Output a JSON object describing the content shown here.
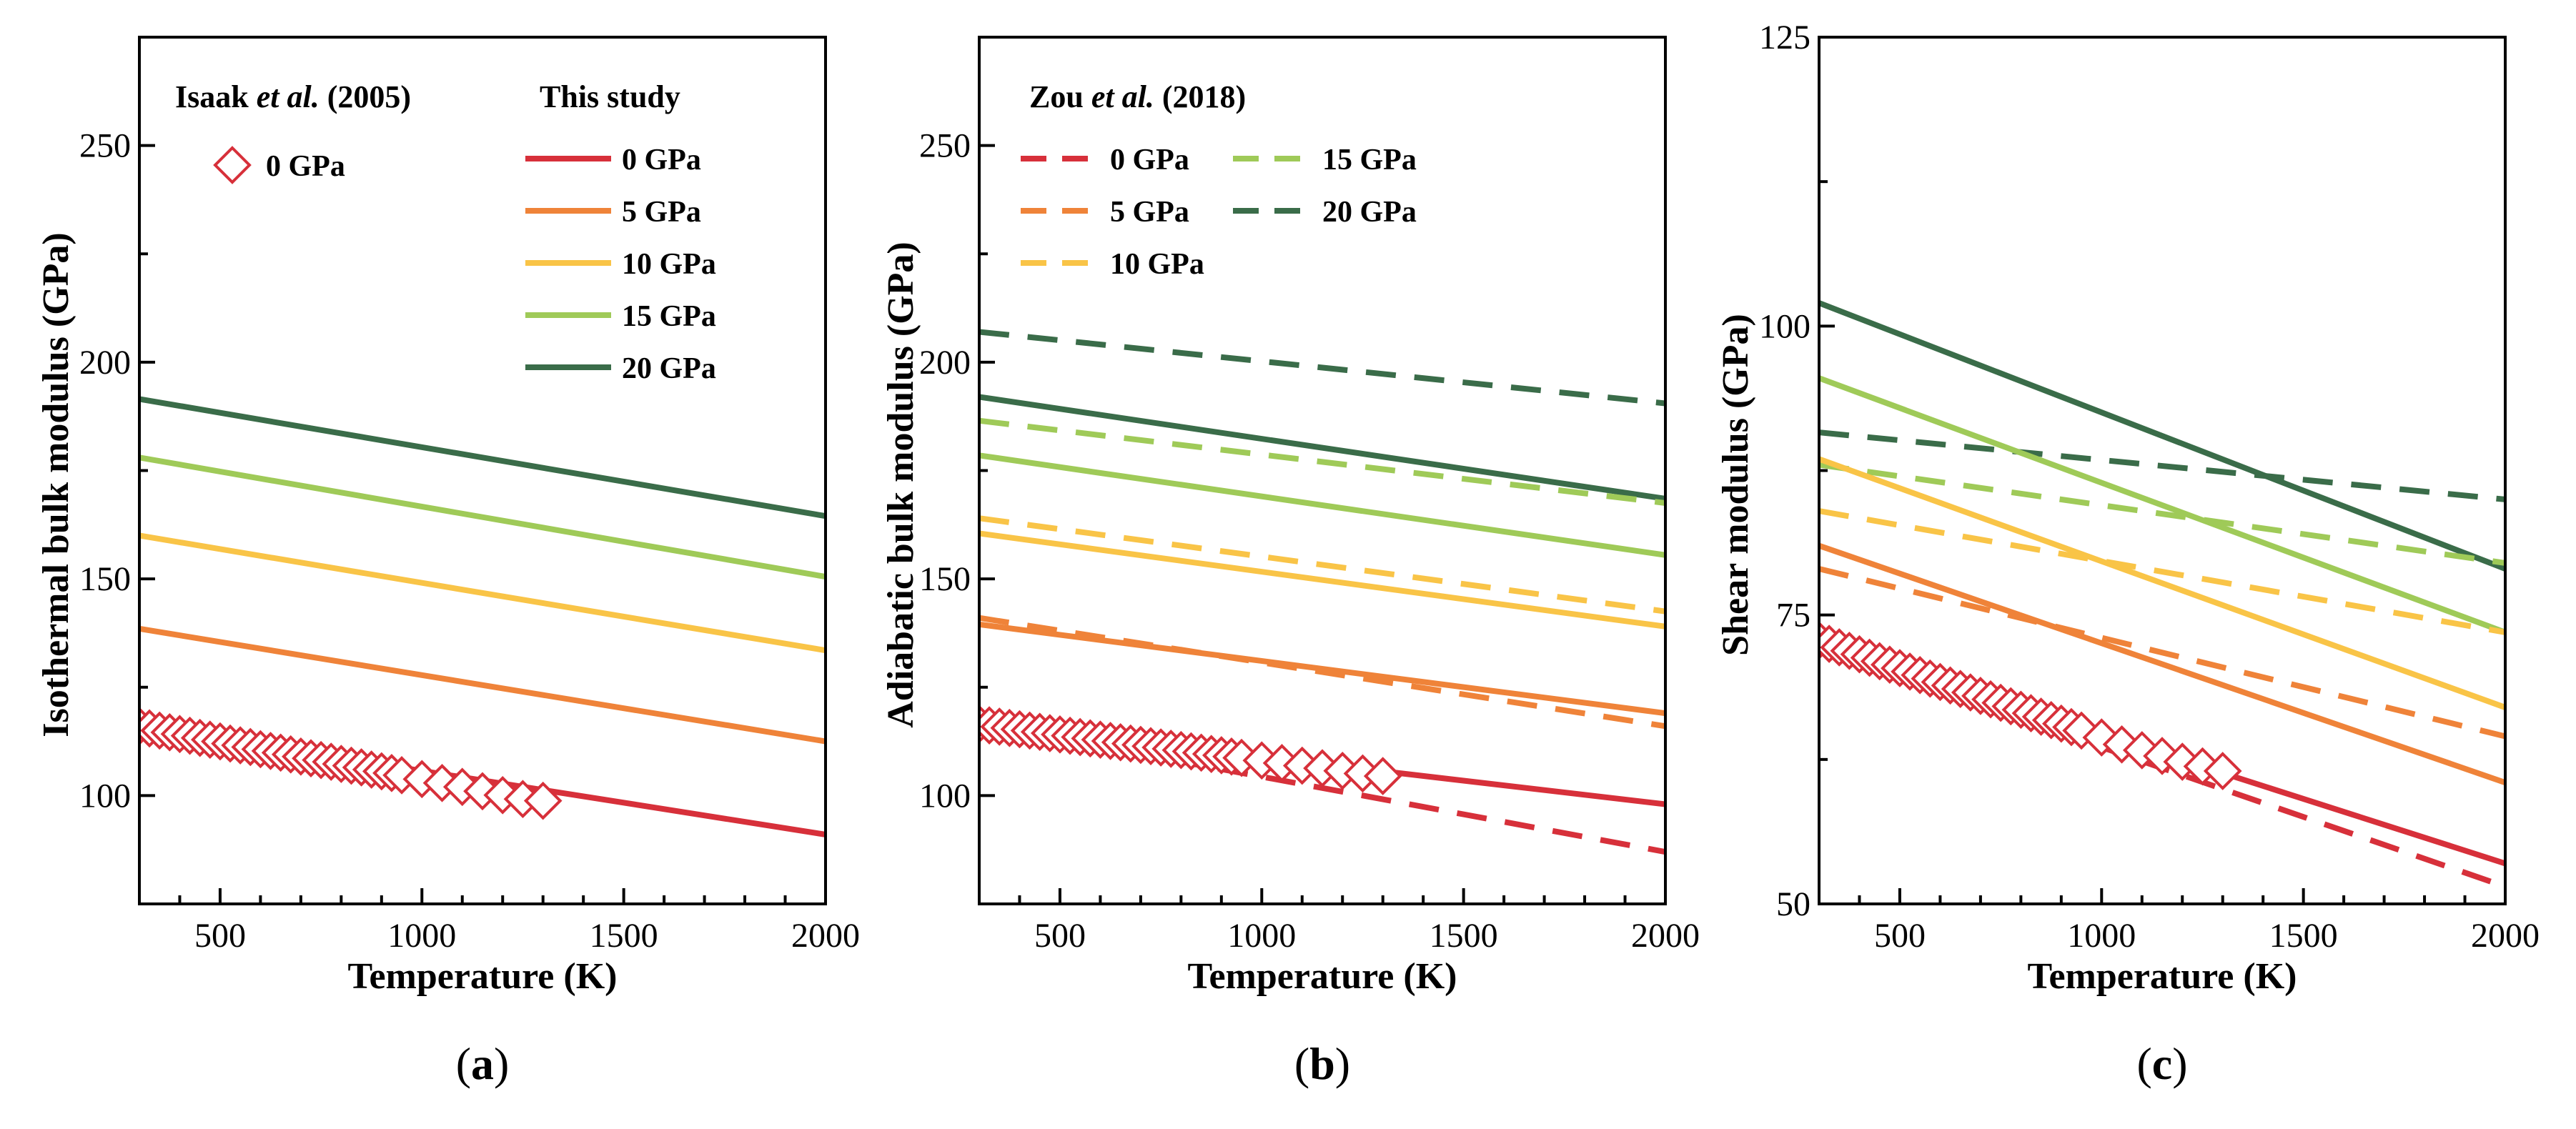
{
  "colors": {
    "p0": "#d7303a",
    "p5": "#ef8339",
    "p10": "#f9c447",
    "p15": "#9fca58",
    "p20": "#3a6c49",
    "axis": "#000000"
  },
  "chart_data": [
    {
      "type": "line",
      "panel_label": "(a)",
      "panel_letter": "a",
      "xlabel": "Temperature (K)",
      "ylabel": "Isothermal bulk modulus (GPa)",
      "xlim": [
        300,
        2000
      ],
      "ylim": [
        75,
        275
      ],
      "xticks": [
        500,
        1000,
        1500,
        2000
      ],
      "yticks": [
        100,
        150,
        200,
        250
      ],
      "legend_groups": [
        {
          "title_parts": [
            "Isaak ",
            "et al.",
            " (2005)"
          ],
          "entries": [
            {
              "label": "0 GPa",
              "marker": "diamond",
              "color_key": "p0"
            }
          ]
        },
        {
          "title_parts": [
            "This study"
          ],
          "entries": [
            {
              "label": "0 GPa",
              "style": "solid",
              "color_key": "p0"
            },
            {
              "label": "5 GPa",
              "style": "solid",
              "color_key": "p5"
            },
            {
              "label": "10 GPa",
              "style": "solid",
              "color_key": "p10"
            },
            {
              "label": "15 GPa",
              "style": "solid",
              "color_key": "p15"
            },
            {
              "label": "20 GPa",
              "style": "solid",
              "color_key": "p20"
            }
          ]
        }
      ],
      "series": [
        {
          "name": "This study 20 GPa",
          "style": "solid",
          "color_key": "p20",
          "x": [
            300,
            2000
          ],
          "y": [
            191.5,
            164.5
          ]
        },
        {
          "name": "This study 15 GPa",
          "style": "solid",
          "color_key": "p15",
          "x": [
            300,
            2000
          ],
          "y": [
            178,
            150.5
          ]
        },
        {
          "name": "This study 10 GPa",
          "style": "solid",
          "color_key": "p10",
          "x": [
            300,
            2000
          ],
          "y": [
            160,
            133.5
          ]
        },
        {
          "name": "This study 5 GPa",
          "style": "solid",
          "color_key": "p5",
          "x": [
            300,
            2000
          ],
          "y": [
            138.5,
            112.5
          ]
        },
        {
          "name": "This study 0 GPa",
          "style": "solid",
          "color_key": "p0",
          "x": [
            300,
            2000
          ],
          "y": [
            116,
            91
          ]
        },
        {
          "name": "Isaak et al. (2005) 0 GPa",
          "style": "diamond",
          "color_key": "p0",
          "x": [
            300,
            325,
            350,
            375,
            400,
            425,
            450,
            475,
            500,
            525,
            550,
            575,
            600,
            625,
            650,
            675,
            700,
            725,
            750,
            775,
            800,
            825,
            850,
            875,
            900,
            925,
            950,
            1000,
            1050,
            1100,
            1150,
            1200,
            1250,
            1300
          ],
          "y": [
            116,
            115.5,
            115,
            114.6,
            114.2,
            113.8,
            113.3,
            112.9,
            112.5,
            112,
            111.6,
            111.2,
            110.7,
            110.3,
            109.9,
            109.5,
            109,
            108.6,
            108.2,
            107.8,
            107.3,
            106.9,
            106.5,
            106,
            105.6,
            105.2,
            104.7,
            103.8,
            102.9,
            102,
            101,
            100.1,
            99.2,
            98.8
          ]
        }
      ]
    },
    {
      "type": "line",
      "panel_label": "(b)",
      "panel_letter": "b",
      "xlabel": "Temperature (K)",
      "ylabel": "Adiabatic bulk modulus (GPa)",
      "xlim": [
        300,
        2000
      ],
      "ylim": [
        75,
        275
      ],
      "xticks": [
        500,
        1000,
        1500,
        2000
      ],
      "yticks": [
        100,
        150,
        200,
        250
      ],
      "legend_groups": [
        {
          "title_parts": [
            "Zou ",
            "et al.",
            " (2018)"
          ],
          "entries": [
            {
              "label": "0 GPa",
              "style": "dashed",
              "color_key": "p0"
            },
            {
              "label": "5 GPa",
              "style": "dashed",
              "color_key": "p5"
            },
            {
              "label": "10 GPa",
              "style": "dashed",
              "color_key": "p10"
            },
            {
              "label": "15 GPa",
              "style": "dashed",
              "color_key": "p15"
            },
            {
              "label": "20 GPa",
              "style": "dashed",
              "color_key": "p20"
            }
          ]
        }
      ],
      "series": [
        {
          "name": "Zou et al. 20 GPa",
          "style": "dashed",
          "color_key": "p20",
          "x": [
            300,
            2000
          ],
          "y": [
            207,
            190.5
          ]
        },
        {
          "name": "This study 20 GPa",
          "style": "solid",
          "color_key": "p20",
          "x": [
            300,
            2000
          ],
          "y": [
            192,
            168.5
          ]
        },
        {
          "name": "Zou et al. 15 GPa",
          "style": "dashed",
          "color_key": "p15",
          "x": [
            300,
            2000
          ],
          "y": [
            186.5,
            167.5
          ]
        },
        {
          "name": "This study 15 GPa",
          "style": "solid",
          "color_key": "p15",
          "x": [
            300,
            2000
          ],
          "y": [
            178.5,
            155.5
          ]
        },
        {
          "name": "Zou et al. 10 GPa",
          "style": "dashed",
          "color_key": "p10",
          "x": [
            300,
            2000
          ],
          "y": [
            164,
            142.5
          ]
        },
        {
          "name": "This study 10 GPa",
          "style": "solid",
          "color_key": "p10",
          "x": [
            300,
            2000
          ],
          "y": [
            160.5,
            139
          ]
        },
        {
          "name": "Zou et al. 5 GPa",
          "style": "dashed",
          "color_key": "p5",
          "x": [
            300,
            2000
          ],
          "y": [
            141,
            116
          ]
        },
        {
          "name": "This study 5 GPa",
          "style": "solid",
          "color_key": "p5",
          "x": [
            300,
            2000
          ],
          "y": [
            139.5,
            119
          ]
        },
        {
          "name": "Zou et al. 0 GPa",
          "style": "dashed",
          "color_key": "p0",
          "x": [
            300,
            2000
          ],
          "y": [
            116.5,
            87
          ]
        },
        {
          "name": "This study 0 GPa",
          "style": "solid",
          "color_key": "p0",
          "x": [
            300,
            2000
          ],
          "y": [
            116.5,
            98
          ]
        },
        {
          "name": "Isaak et al. (2005) 0 GPa",
          "style": "diamond",
          "color_key": "p0",
          "x": [
            300,
            325,
            350,
            375,
            400,
            425,
            450,
            475,
            500,
            525,
            550,
            575,
            600,
            625,
            650,
            675,
            700,
            725,
            750,
            775,
            800,
            825,
            850,
            875,
            900,
            925,
            950,
            1000,
            1050,
            1100,
            1150,
            1200,
            1250,
            1300
          ],
          "y": [
            116.5,
            116.2,
            115.9,
            115.6,
            115.3,
            115,
            114.7,
            114.4,
            114.1,
            113.8,
            113.5,
            113.2,
            112.9,
            112.6,
            112.3,
            112,
            111.7,
            111.4,
            111.1,
            110.8,
            110.5,
            110.2,
            109.9,
            109.6,
            109.3,
            109,
            108.7,
            108.1,
            107.5,
            106.9,
            106.3,
            105.7,
            105.1,
            104.5
          ]
        }
      ]
    },
    {
      "type": "line",
      "panel_label": "(c)",
      "panel_letter": "c",
      "xlabel": "Temperature (K)",
      "ylabel": "Shear modulus (GPa)",
      "xlim": [
        300,
        2000
      ],
      "ylim": [
        50,
        125
      ],
      "xticks": [
        500,
        1000,
        1500,
        2000
      ],
      "yticks": [
        50,
        75,
        100,
        125
      ],
      "legend_groups": [],
      "series": [
        {
          "name": "This study 20 GPa",
          "style": "solid",
          "color_key": "p20",
          "x": [
            300,
            2000
          ],
          "y": [
            102,
            79
          ]
        },
        {
          "name": "Zou et al. 20 GPa",
          "style": "dashed",
          "color_key": "p20",
          "x": [
            300,
            2000
          ],
          "y": [
            90.8,
            85
          ]
        },
        {
          "name": "This study 15 GPa",
          "style": "solid",
          "color_key": "p15",
          "x": [
            300,
            2000
          ],
          "y": [
            95.5,
            73.5
          ]
        },
        {
          "name": "Zou et al. 15 GPa",
          "style": "dashed",
          "color_key": "p15",
          "x": [
            300,
            2000
          ],
          "y": [
            88,
            79.5
          ]
        },
        {
          "name": "This study 10 GPa",
          "style": "solid",
          "color_key": "p10",
          "x": [
            300,
            2000
          ],
          "y": [
            88.5,
            67
          ]
        },
        {
          "name": "Zou et al. 10 GPa",
          "style": "dashed",
          "color_key": "p10",
          "x": [
            300,
            2000
          ],
          "y": [
            84,
            73.5
          ]
        },
        {
          "name": "This study 5 GPa",
          "style": "solid",
          "color_key": "p5",
          "x": [
            300,
            2000
          ],
          "y": [
            81,
            60.5
          ]
        },
        {
          "name": "Zou et al. 5 GPa",
          "style": "dashed",
          "color_key": "p5",
          "x": [
            300,
            2000
          ],
          "y": [
            79,
            64.5
          ]
        },
        {
          "name": "This study 0 GPa",
          "style": "solid",
          "color_key": "p0",
          "x": [
            300,
            2000
          ],
          "y": [
            72.5,
            53.5
          ]
        },
        {
          "name": "Zou et al. 0 GPa",
          "style": "dashed",
          "color_key": "p0",
          "x": [
            300,
            2000
          ],
          "y": [
            72,
            51.5
          ]
        },
        {
          "name": "Isaak et al. (2005) 0 GPa",
          "style": "diamond",
          "color_key": "p0",
          "x": [
            300,
            325,
            350,
            375,
            400,
            425,
            450,
            475,
            500,
            525,
            550,
            575,
            600,
            625,
            650,
            675,
            700,
            725,
            750,
            775,
            800,
            825,
            850,
            875,
            900,
            925,
            950,
            1000,
            1050,
            1100,
            1150,
            1200,
            1250,
            1300
          ],
          "y": [
            72.8,
            72.5,
            72.2,
            71.9,
            71.6,
            71.3,
            71,
            70.7,
            70.4,
            70.1,
            69.8,
            69.5,
            69.2,
            68.9,
            68.6,
            68.3,
            68,
            67.7,
            67.4,
            67.1,
            66.8,
            66.5,
            66.2,
            65.9,
            65.6,
            65.3,
            65,
            64.4,
            63.8,
            63.3,
            62.8,
            62.3,
            61.9,
            61.5
          ]
        }
      ]
    }
  ]
}
